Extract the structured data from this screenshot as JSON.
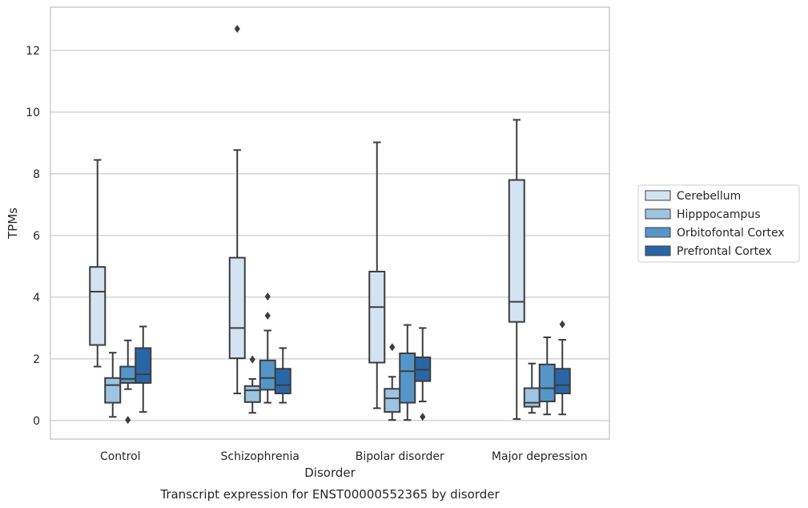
{
  "caption": "Transcript expression for ENST00000552365 by disorder",
  "chart_data": {
    "type": "box",
    "xlabel": "Disorder",
    "ylabel": "TPMs",
    "ylim": [
      -0.6,
      13.4
    ],
    "yticks": [
      0,
      2,
      4,
      6,
      8,
      10,
      12
    ],
    "grid": true,
    "legend_position": "right",
    "categories": [
      "Control",
      "Schizophrenia",
      "Bipolar disorder",
      "Major depression"
    ],
    "series": [
      {
        "name": "Cerebellum",
        "color": "#d4e3f2",
        "boxes": [
          {
            "whisker_low": 1.75,
            "q1": 2.45,
            "median": 4.18,
            "q3": 4.98,
            "whisker_high": 8.45,
            "outliers": []
          },
          {
            "whisker_low": 0.88,
            "q1": 2.02,
            "median": 3.0,
            "q3": 5.28,
            "whisker_high": 8.77,
            "outliers": [
              12.7
            ]
          },
          {
            "whisker_low": 0.4,
            "q1": 1.88,
            "median": 3.68,
            "q3": 4.83,
            "whisker_high": 9.02,
            "outliers": []
          },
          {
            "whisker_low": 0.05,
            "q1": 3.2,
            "median": 3.85,
            "q3": 7.8,
            "whisker_high": 9.75,
            "outliers": []
          }
        ]
      },
      {
        "name": "Hipppocampus",
        "color": "#9dc4e0",
        "boxes": [
          {
            "whisker_low": 0.12,
            "q1": 0.58,
            "median": 1.15,
            "q3": 1.38,
            "whisker_high": 2.2,
            "outliers": []
          },
          {
            "whisker_low": 0.25,
            "q1": 0.6,
            "median": 0.98,
            "q3": 1.12,
            "whisker_high": 1.35,
            "outliers": [
              1.98
            ]
          },
          {
            "whisker_low": 0.02,
            "q1": 0.28,
            "median": 0.72,
            "q3": 1.03,
            "whisker_high": 1.42,
            "outliers": [
              2.38
            ]
          },
          {
            "whisker_low": 0.25,
            "q1": 0.45,
            "median": 0.58,
            "q3": 1.05,
            "whisker_high": 1.85,
            "outliers": []
          }
        ]
      },
      {
        "name": "Orbitofontal Cortex",
        "color": "#5596c8",
        "boxes": [
          {
            "whisker_low": 1.02,
            "q1": 1.22,
            "median": 1.35,
            "q3": 1.75,
            "whisker_high": 2.6,
            "outliers": [
              0.02
            ]
          },
          {
            "whisker_low": 0.58,
            "q1": 1.0,
            "median": 1.38,
            "q3": 1.95,
            "whisker_high": 2.92,
            "outliers": [
              3.4,
              4.02
            ]
          },
          {
            "whisker_low": 0.02,
            "q1": 0.58,
            "median": 1.6,
            "q3": 2.18,
            "whisker_high": 3.1,
            "outliers": []
          },
          {
            "whisker_low": 0.2,
            "q1": 0.62,
            "median": 1.05,
            "q3": 1.82,
            "whisker_high": 2.7,
            "outliers": []
          }
        ]
      },
      {
        "name": "Prefrontal Cortex",
        "color": "#2966a6",
        "boxes": [
          {
            "whisker_low": 0.28,
            "q1": 1.22,
            "median": 1.5,
            "q3": 2.35,
            "whisker_high": 3.05,
            "outliers": []
          },
          {
            "whisker_low": 0.58,
            "q1": 0.88,
            "median": 1.15,
            "q3": 1.68,
            "whisker_high": 2.35,
            "outliers": []
          },
          {
            "whisker_low": 0.62,
            "q1": 1.28,
            "median": 1.65,
            "q3": 2.05,
            "whisker_high": 3.0,
            "outliers": [
              0.12
            ]
          },
          {
            "whisker_low": 0.2,
            "q1": 0.88,
            "median": 1.15,
            "q3": 1.68,
            "whisker_high": 2.62,
            "outliers": [
              3.12
            ]
          }
        ]
      }
    ]
  }
}
